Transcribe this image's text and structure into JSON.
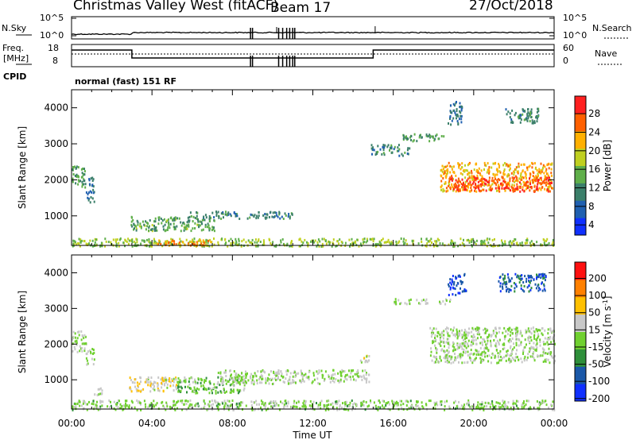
{
  "header": {
    "site": "Christmas Valley West (fitACF)",
    "beam": "Beam 17",
    "date": "27/Oct/2018"
  },
  "noise_panel": {
    "left_label": "N.Sky",
    "right_label": "N.Search",
    "left_ticks": [
      "10^5",
      "10^0"
    ],
    "right_ticks": [
      "10^5",
      "10^0"
    ]
  },
  "freq_panel": {
    "left_label_1": "Freq.",
    "left_label_2": "[MHz]",
    "right_label": "Nave",
    "left_ticks": [
      "18",
      "8"
    ],
    "right_ticks": [
      "60",
      "0"
    ]
  },
  "cpid": {
    "label": "CPID",
    "value": "normal (fast) 151 RF"
  },
  "chart_data": [
    {
      "type": "heatmap",
      "ylabel": "Slant Range [km]",
      "y_ticks": [
        "4000",
        "3000",
        "2000",
        "1000"
      ],
      "ylim": [
        180,
        4500
      ],
      "colorbar": {
        "label": "Power [dB]",
        "ticks": [
          "28",
          "24",
          "20",
          "16",
          "12",
          "8",
          "4"
        ],
        "colors": [
          "#1030ff",
          "#2060b0",
          "#3b7f6a",
          "#5faf4a",
          "#c0d020",
          "#ffb000",
          "#ff6000",
          "#ff2020"
        ],
        "range": [
          0,
          32
        ]
      },
      "regions": [
        {
          "x": [
            0,
            0.7
          ],
          "y": [
            1800,
            2400
          ],
          "level": 12
        },
        {
          "x": [
            0.7,
            1.1
          ],
          "y": [
            1400,
            2100
          ],
          "level": 8
        },
        {
          "x": [
            2.9,
            7.2
          ],
          "y": [
            600,
            1000
          ],
          "level": 13
        },
        {
          "x": [
            5.8,
            11
          ],
          "y": [
            950,
            1150
          ],
          "level": 10
        },
        {
          "x": [
            0,
            24
          ],
          "y": [
            180,
            400
          ],
          "level": 16
        },
        {
          "x": [
            4.2,
            7
          ],
          "y": [
            200,
            350
          ],
          "level": 24
        },
        {
          "x": [
            14.8,
            16.8
          ],
          "y": [
            2700,
            3000
          ],
          "level": 10
        },
        {
          "x": [
            16.4,
            18.6
          ],
          "y": [
            3100,
            3300
          ],
          "level": 12
        },
        {
          "x": [
            18.3,
            23.9
          ],
          "y": [
            1700,
            2500
          ],
          "level": 22
        },
        {
          "x": [
            18.7,
            23.9
          ],
          "y": [
            1700,
            2100
          ],
          "level": 28
        },
        {
          "x": [
            18.7,
            19.4
          ],
          "y": [
            3500,
            4200
          ],
          "level": 8
        },
        {
          "x": [
            21.5,
            23.2
          ],
          "y": [
            3600,
            4000
          ],
          "level": 10
        }
      ]
    },
    {
      "type": "heatmap",
      "ylabel": "Slant Range [km]",
      "xlabel": "Time UT",
      "x_ticks": [
        "00:00",
        "04:00",
        "08:00",
        "12:00",
        "16:00",
        "20:00",
        "00:00"
      ],
      "y_ticks": [
        "4000",
        "3000",
        "2000",
        "1000"
      ],
      "ylim": [
        180,
        4500
      ],
      "xlim": [
        0,
        24
      ],
      "colorbar": {
        "label": "Velocity [m s",
        "label_exp": "-1",
        "label_end": "]",
        "ticks": [
          "200",
          "100",
          "50",
          "15",
          "-15",
          "-50",
          "-100",
          "-200"
        ],
        "colors": [
          "#1030ff",
          "#1a58a8",
          "#2e8f3a",
          "#70d030",
          "#c8c8c8",
          "#ffc000",
          "#ff8000",
          "#ff1010"
        ],
        "range": [
          -250,
          250
        ]
      },
      "regions": [
        {
          "x": [
            0,
            0.7
          ],
          "y": [
            1800,
            2400
          ],
          "level": 0
        },
        {
          "x": [
            0.7,
            1.1
          ],
          "y": [
            1400,
            1900
          ],
          "level": 0
        },
        {
          "x": [
            1.1,
            1.6
          ],
          "y": [
            600,
            800
          ],
          "level": 40
        },
        {
          "x": [
            2.8,
            5.2
          ],
          "y": [
            700,
            1100
          ],
          "level": 45
        },
        {
          "x": [
            5.2,
            8.6
          ],
          "y": [
            650,
            1100
          ],
          "level": -40
        },
        {
          "x": [
            7.2,
            14.8
          ],
          "y": [
            900,
            1300
          ],
          "level": 0
        },
        {
          "x": [
            0,
            24
          ],
          "y": [
            180,
            450
          ],
          "level": -20
        },
        {
          "x": [
            14.2,
            14.8
          ],
          "y": [
            1500,
            1700
          ],
          "level": 40
        },
        {
          "x": [
            16.0,
            18.8
          ],
          "y": [
            3150,
            3300
          ],
          "level": 0
        },
        {
          "x": [
            17.8,
            24
          ],
          "y": [
            1500,
            2500
          ],
          "level": 0
        },
        {
          "x": [
            18.7,
            19.6
          ],
          "y": [
            3400,
            4000
          ],
          "level": -180
        },
        {
          "x": [
            21.2,
            23.6
          ],
          "y": [
            3500,
            4000
          ],
          "level": -150
        }
      ]
    }
  ]
}
